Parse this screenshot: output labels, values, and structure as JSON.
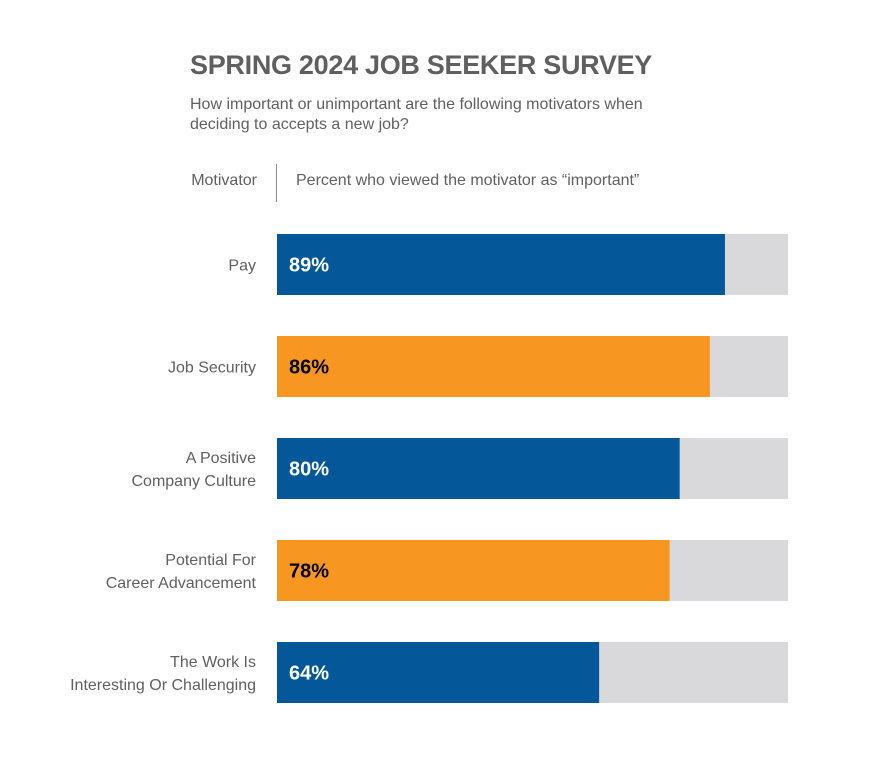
{
  "chart_data": {
    "type": "bar",
    "orientation": "horizontal",
    "title": "SPRING 2024 JOB SEEKER SURVEY",
    "subtitle": "How important or unimportant are the following motivators when deciding to accepts a new job?",
    "category_header": "Motivator",
    "value_header": "Percent who viewed the motivator as “important”",
    "categories": [
      [
        "Pay"
      ],
      [
        "Job Security"
      ],
      [
        "A Positive",
        "Company Culture"
      ],
      [
        "Potential For",
        "Career Advancement"
      ],
      [
        "The Work Is",
        "Interesting Or Challenging"
      ]
    ],
    "values": [
      89,
      86,
      80,
      78,
      64
    ],
    "value_labels": [
      "89%",
      "86%",
      "80%",
      "78%",
      "64%"
    ],
    "xlim": [
      0,
      100
    ],
    "colors": [
      "#04589a",
      "#f79621",
      "#04589a",
      "#f79621",
      "#04589a"
    ],
    "label_colors": [
      "#ffffff",
      "#000000",
      "#ffffff",
      "#000000",
      "#ffffff"
    ],
    "track_color": "#d9d9db",
    "grid": false
  }
}
